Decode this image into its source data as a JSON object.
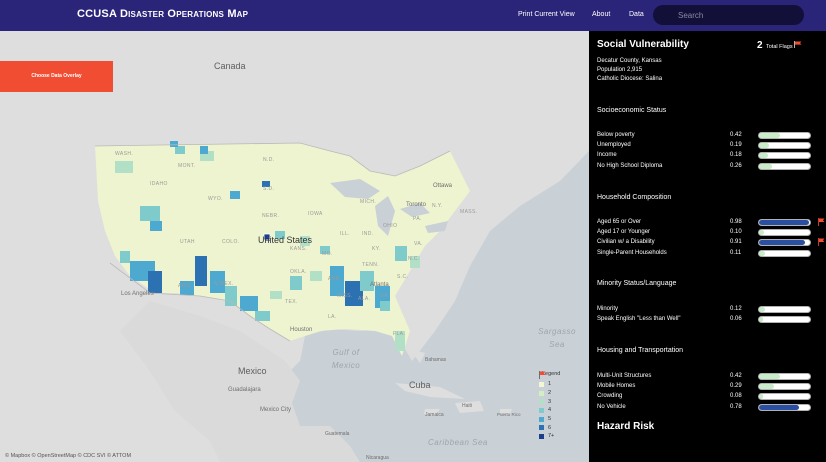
{
  "header": {
    "title": "CCUSA Disaster Operations Map",
    "nav": [
      "Print Current View",
      "About",
      "Data"
    ],
    "search_placeholder": "Search"
  },
  "map": {
    "overlay_button": "Choose Data Overlay",
    "labels": {
      "canada": "Canada",
      "united_states": "United States",
      "mexico": "Mexico",
      "gulf_of_mexico": "Gulf of Mexico",
      "sargasso_sea": "Sargasso Sea",
      "caribbean_sea": "Caribbean Sea",
      "cuba": "Cuba",
      "bahamas": "Bahamas",
      "haiti": "Haiti",
      "jamaica": "Jamaica",
      "puerto_rico": "Puerto Rico",
      "guatemala": "Guatemala",
      "nicaragua": "Nicaragua",
      "ottawa": "Ottawa",
      "toronto": "Toronto",
      "houston": "Houston",
      "atlanta": "Atlanta",
      "los_angeles": "Los Angeles",
      "guadalajara": "Guadalajara",
      "mexico_city": "Mexico City",
      "wash": "WASH.",
      "idaho": "IDAHO",
      "wyo": "WYO.",
      "nd": "N.D.",
      "sd": "S.D.",
      "nebr": "NEBR.",
      "iowa": "IOWA",
      "ill": "ILL.",
      "ind": "IND.",
      "ohio": "OHIO",
      "pa": "PA.",
      "ny": "N.Y.",
      "mass": "MASS.",
      "mich": "MICH.",
      "mont": "MONT.",
      "utah": "UTAH",
      "colo": "COLO.",
      "kans": "KANS.",
      "okla": "OKLA.",
      "ariz": "ARIZ.",
      "nmex": "N.MEX.",
      "tex": "TEX.",
      "ark": "ARK.",
      "tenn": "TENN.",
      "ky": "KY.",
      "miss": "MISS.",
      "ala": "ALA.",
      "ga": "GA.",
      "sc": "S.C.",
      "nc": "N.C.",
      "va": "VA.",
      "la": "LA.",
      "fla": "FLA.",
      "mo": "MO."
    },
    "attribution": "© Mapbox © OpenStreetMap © CDC SVI © ATTOM",
    "legend": {
      "title": "Legend",
      "items": [
        "1",
        "2",
        "3",
        "4",
        "5",
        "6",
        "7+"
      ],
      "colors": [
        "#f4f7d6",
        "#d5edc3",
        "#b2e0c6",
        "#7fcbcc",
        "#4ea9d0",
        "#2c72b3",
        "#1d3e8a"
      ]
    }
  },
  "panel": {
    "title": "Social Vulnerability",
    "flags_count": "2",
    "flags_label": "Total Flags",
    "county": "Decatur County, Kansas",
    "population": "Population 2,915",
    "diocese": "Catholic Diocese: Salina",
    "sections": [
      {
        "title": "Socioeconomic Status",
        "rows": [
          {
            "label": "Below poverty",
            "value": "0.42",
            "fraction": 0.42,
            "flag": false
          },
          {
            "label": "Unemployed",
            "value": "0.19",
            "fraction": 0.19,
            "flag": false
          },
          {
            "label": "Income",
            "value": "0.18",
            "fraction": 0.18,
            "flag": false
          },
          {
            "label": "No High School Diploma",
            "value": "0.26",
            "fraction": 0.26,
            "flag": false
          }
        ]
      },
      {
        "title": "Household Composition",
        "rows": [
          {
            "label": "Aged 65 or Over",
            "value": "0.98",
            "fraction": 0.98,
            "flag": true
          },
          {
            "label": "Aged 17 or Younger",
            "value": "0.10",
            "fraction": 0.1,
            "flag": false
          },
          {
            "label": "Civilian w/ a Disability",
            "value": "0.91",
            "fraction": 0.91,
            "flag": true
          },
          {
            "label": "Single-Parent Households",
            "value": "0.11",
            "fraction": 0.11,
            "flag": false
          }
        ]
      },
      {
        "title": "Minority Status/Language",
        "rows": [
          {
            "label": "Minority",
            "value": "0.12",
            "fraction": 0.12,
            "flag": false
          },
          {
            "label": "Speak English \"Less than Well\"",
            "value": "0.06",
            "fraction": 0.06,
            "flag": false
          }
        ]
      },
      {
        "title": "Housing and Transportation",
        "rows": [
          {
            "label": "Multi-Unit Structures",
            "value": "0.42",
            "fraction": 0.42,
            "flag": false
          },
          {
            "label": "Mobile Homes",
            "value": "0.29",
            "fraction": 0.29,
            "flag": false
          },
          {
            "label": "Crowding",
            "value": "0.08",
            "fraction": 0.08,
            "flag": false
          },
          {
            "label": "No Vehicle",
            "value": "0.78",
            "fraction": 0.78,
            "flag": false
          }
        ]
      }
    ],
    "hazard_title": "Hazard Risk"
  },
  "colors": {
    "header": "#2b2579",
    "accent": "#f04d33",
    "low_fill": "#c8ebc9",
    "high_fill": "#2a4fa0"
  }
}
